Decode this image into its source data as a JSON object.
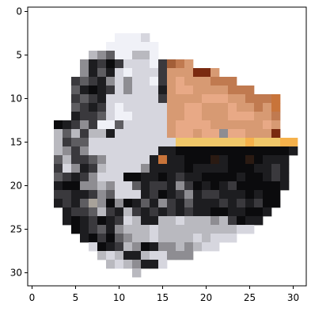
{
  "chart_data": {
    "type": "heatmap",
    "title": "",
    "xlabel": "",
    "ylabel": "",
    "grid": false,
    "cols": 32,
    "rows": 32,
    "xlim": [
      -0.5,
      31.5
    ],
    "ylim": [
      31.5,
      -0.5
    ],
    "x_ticks": [
      0,
      5,
      10,
      15,
      20,
      25,
      30
    ],
    "y_ticks": [
      0,
      5,
      10,
      15,
      20,
      25,
      30
    ],
    "x_tick_labels": [
      "0",
      "5",
      "10",
      "15",
      "20",
      "25",
      "30"
    ],
    "y_tick_labels": [
      "0",
      "5",
      "10",
      "15",
      "20",
      "25",
      "30"
    ],
    "background": "#ffffff",
    "palette": {
      ".": "#ffffff",
      "a": "#f0f1f7",
      "b": "#d6d6de",
      "c": "#b9b9bf",
      "d": "#8e8d92",
      "e": "#5e5d61",
      "f": "#3a393d",
      "g": "#1d1d20",
      "h": "#0b0b0d",
      "i": "#a35f38",
      "j": "#c07a50",
      "k": "#d79a73",
      "l": "#e8a986",
      "m": "#7a2a10",
      "n": "#f0c76a",
      "o": "#f5b14b",
      "p": "#2a1a12",
      "q": "#a8a29a",
      "r": "#c8743a"
    },
    "pixels": [
      "................................",
      "................................",
      "................................",
      "..........aaab..................",
      ".........aaaaaa.................",
      ".......cdeaacca.................",
      "......dgfhfbbbafijk.............",
      "......dgegbabbbfkkkmmk..........",
      ".....fefgdbdbbafklkkkjjj........",
      ".....eghgfbdbbbgkllkkkkjjj......",
      ".....fefgbbbbbbfkkkklllkkjjjr...",
      ".....efgfbabbbbbkkllkkklkkjkr...",
      ".....gffebaabbbbkkllkkklllkkj...",
      "...hgfdfaaebbbbbkllllkkkkkklk...",
      "...cecfccgbbbbbbkllklldllkkkm...",
      "...cfeebbbbbbbbbbnnnnnnnnonnnoo.",
      "...cdfdbbbbbbbbgghhhhhhhhhhhhhg.",
      "...ecffedbbbbbgrgghhhpghhphggg..",
      "...fbdgfcbbbbdgggghgggghhhggfg..",
      "...efgfdbbbhhgghgfgghhhhghhgfg..",
      "...ghhddcdbbegffgdfhghgfhhhhhg..",
      "...ffggfdebbbgfhgfdgffggghghh...",
      "...gfgeqdhdhgegdfgegggfgfgfhh...",
      "....gffecfgcfgfgfgfgghhgghhg....",
      "....ghgfhgfbcggccbcccdcfhgg.....",
      ".....hgfegdcccbcccccccccbb......",
      "......ghfhedccbccccbcbbb........",
      ".......bhgfcdhgddcdcbb..........",
      "........cbcggcbbddd.............",
      ".........cbcdggb................",
      "............c...................",
      "................................"
    ]
  }
}
